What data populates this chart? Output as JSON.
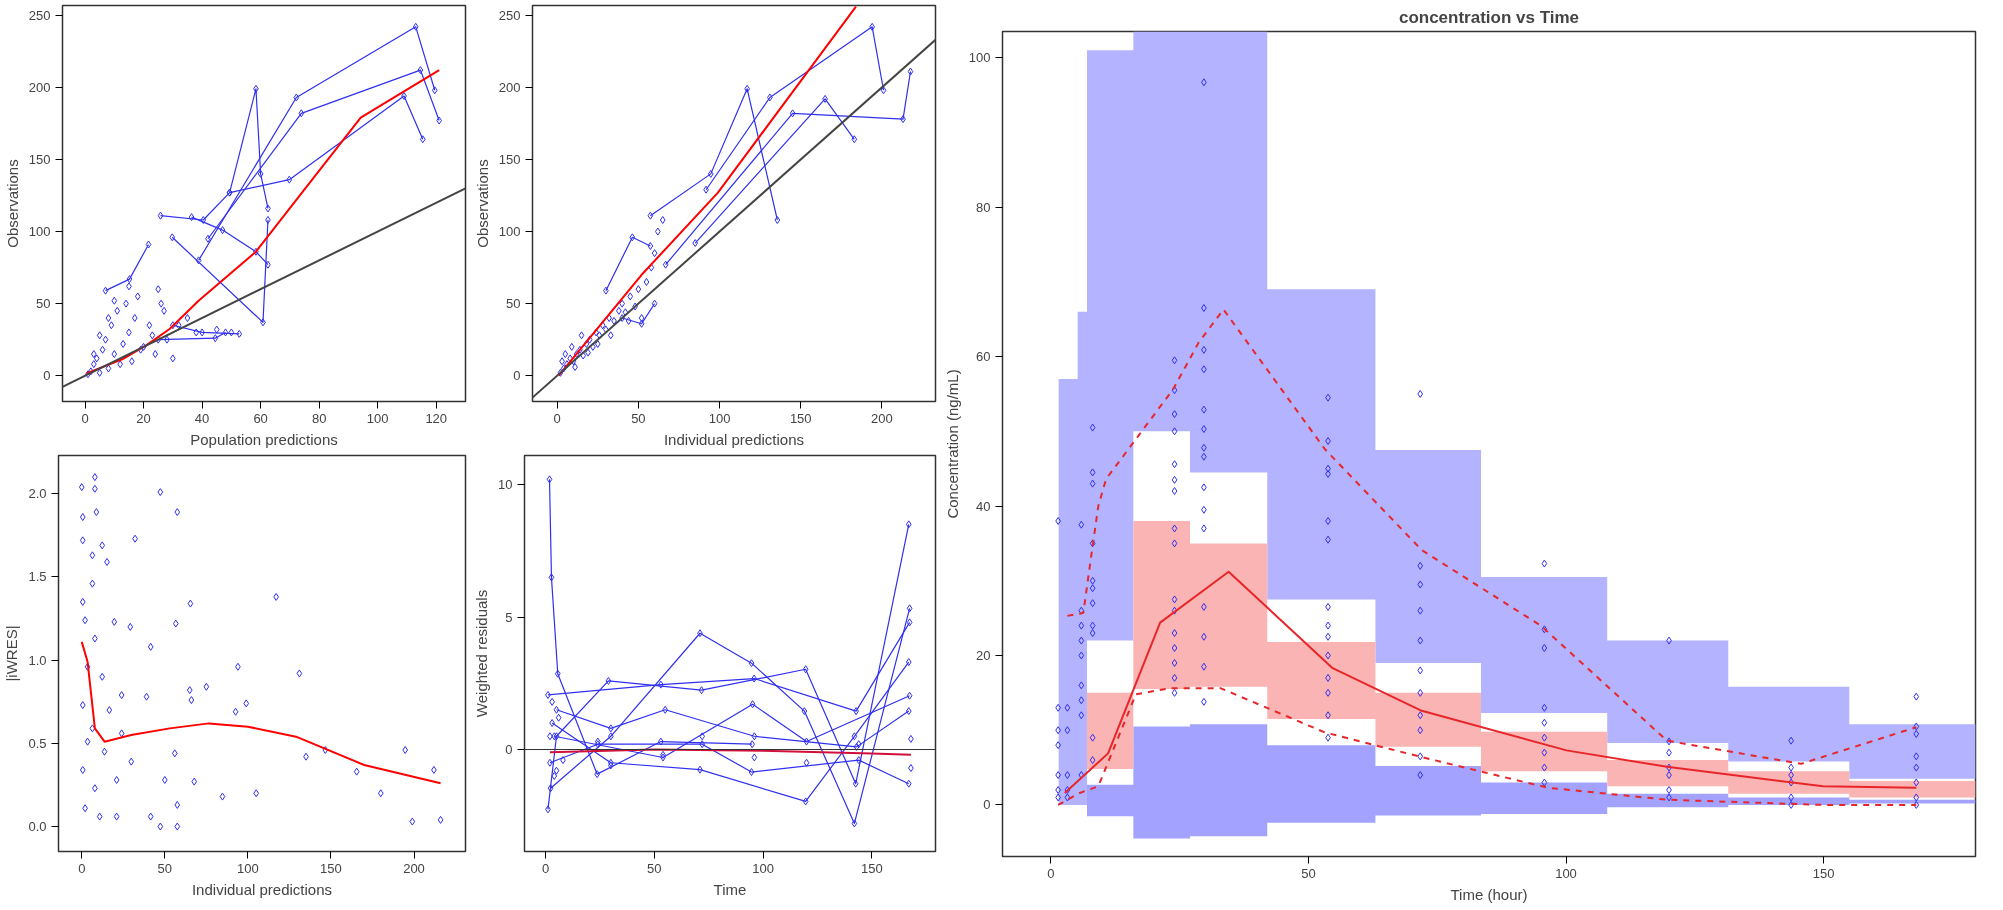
{
  "chart_data": [
    {
      "type": "line",
      "xlabel": "Population predictions",
      "ylabel": "Observations",
      "xlim": [
        -7.7,
        130
      ],
      "ylim": [
        -17.9,
        256.8
      ],
      "xticks": [
        0,
        20,
        40,
        60,
        80,
        100,
        120
      ],
      "yticks": [
        0,
        50,
        100,
        150,
        200,
        250
      ],
      "marker": "diamond",
      "series": [
        {
          "color": "#3030f0",
          "x": [
            25.8,
            40.4,
            49.4,
            58.4,
            60,
            62.5
          ],
          "values": [
            111,
            108,
            127,
            199,
            140,
            116
          ]
        },
        {
          "color": "#3030f0",
          "x": [
            36.4,
            47,
            58.4,
            62.5
          ],
          "values": [
            110,
            101,
            86,
            77
          ]
        },
        {
          "color": "#3030f0",
          "x": [
            38.8,
            72.2,
            113,
            119.5
          ],
          "values": [
            80,
            193,
            242,
            198
          ]
        },
        {
          "color": "#3030f0",
          "x": [
            42,
            73.9,
            114.6,
            121
          ],
          "values": [
            95,
            182,
            212,
            177
          ]
        },
        {
          "color": "#3030f0",
          "x": [
            49.4,
            69.8,
            109,
            115.4
          ],
          "values": [
            127,
            136,
            194,
            164
          ]
        },
        {
          "color": "#3030f0",
          "x": [
            29.8,
            60.8,
            62.5
          ],
          "values": [
            96,
            37,
            108
          ]
        },
        {
          "color": "#3030f0",
          "x": [
            7,
            15.2,
            21.7
          ],
          "values": [
            59,
            67,
            91
          ]
        },
        {
          "color": "#3030f0",
          "x": [
            30,
            40,
            52.7
          ],
          "values": [
            35,
            30,
            29
          ]
        },
        {
          "color": "#3030f0",
          "x": [
            25,
            44.5,
            48
          ],
          "values": [
            25,
            26,
            30
          ]
        },
        {
          "type": "scatter",
          "color": "#3030f0",
          "x": [
            2,
            3,
            4,
            5,
            6,
            7,
            8,
            9,
            10,
            11,
            12,
            13,
            14,
            15,
            16,
            17,
            18,
            20,
            22,
            24,
            25,
            27,
            28,
            30,
            32,
            35,
            38,
            45,
            50,
            1,
            3,
            5,
            8,
            10,
            15,
            19,
            23,
            26
          ],
          "values": [
            3,
            8,
            12,
            2,
            18,
            25,
            5,
            35,
            15,
            45,
            8,
            22,
            50,
            30,
            10,
            40,
            55,
            20,
            35,
            15,
            60,
            45,
            25,
            12,
            35,
            40,
            30,
            32,
            30,
            1,
            15,
            28,
            40,
            52,
            62,
            18,
            28,
            50
          ]
        },
        {
          "color": "#ff0000",
          "marker": "none",
          "x": [
            0.5,
            12.7,
            20.9,
            29,
            38.8,
            58.4,
            78,
            94.2,
            121
          ],
          "values": [
            1.6,
            11.4,
            21,
            32.6,
            52,
            86,
            137,
            179,
            212
          ]
        },
        {
          "color": "#444444",
          "marker": "none",
          "x": [
            -7.7,
            130
          ],
          "values": [
            -7.7,
            130
          ]
        }
      ]
    },
    {
      "type": "line",
      "xlabel": "Individual predictions",
      "ylabel": "Observations",
      "xlim": [
        -15.2,
        233
      ],
      "ylim": [
        -17.9,
        256.8
      ],
      "xticks": [
        0,
        50,
        100,
        150,
        200
      ],
      "yticks": [
        0,
        50,
        100,
        150,
        200,
        250
      ],
      "marker": "diamond",
      "series": [
        {
          "color": "#3030f0",
          "x": [
            57.4,
            94.6,
            117,
            135.6
          ],
          "values": [
            111,
            140,
            199,
            108
          ]
        },
        {
          "color": "#3030f0",
          "x": [
            91.7,
            131,
            194,
            201
          ],
          "values": [
            129,
            193,
            242,
            198
          ]
        },
        {
          "color": "#3030f0",
          "x": [
            66.8,
            145,
            213,
            217.6
          ],
          "values": [
            77,
            182,
            178,
            211
          ]
        },
        {
          "color": "#3030f0",
          "x": [
            85,
            165,
            183
          ],
          "values": [
            92,
            192,
            164
          ]
        },
        {
          "color": "#3030f0",
          "x": [
            30,
            46.3,
            57.4
          ],
          "values": [
            59,
            96,
            90
          ]
        },
        {
          "color": "#3030f0",
          "x": [
            40,
            52,
            60
          ],
          "values": [
            40,
            36,
            50
          ]
        },
        {
          "type": "scatter",
          "color": "#3030f0",
          "x": [
            2,
            4,
            6,
            8,
            10,
            12,
            14,
            16,
            18,
            20,
            22,
            24,
            26,
            28,
            30,
            32,
            35,
            38,
            40,
            42,
            45,
            48,
            50,
            55,
            58,
            60,
            62,
            65,
            3,
            5,
            9,
            11,
            15,
            19,
            25,
            33,
            44,
            52
          ],
          "values": [
            2,
            5,
            8,
            12,
            10,
            15,
            18,
            14,
            22,
            25,
            20,
            30,
            28,
            35,
            32,
            40,
            38,
            45,
            50,
            44,
            55,
            48,
            60,
            65,
            75,
            85,
            100,
            108,
            10,
            15,
            20,
            6,
            28,
            16,
            22,
            28,
            38,
            40
          ]
        },
        {
          "color": "#ff0000",
          "marker": "none",
          "x": [
            0.9,
            52,
            99,
            184
          ],
          "values": [
            0,
            70,
            127,
            256
          ]
        },
        {
          "color": "#444444",
          "marker": "none",
          "x": [
            -15.2,
            233
          ],
          "values": [
            -15.2,
            233
          ]
        }
      ]
    },
    {
      "type": "scatter",
      "xlabel": "Individual predictions",
      "ylabel": "|iWRES|",
      "xlim": [
        -14,
        231
      ],
      "ylim": [
        -0.15,
        2.23
      ],
      "xticks": [
        0,
        50,
        100,
        150,
        200
      ],
      "yticks": [
        {
          "value": 0,
          "label": "0.0"
        },
        0.5,
        {
          "value": 1,
          "label": "1.0"
        },
        1.5,
        {
          "value": 2,
          "label": "2.0"
        }
      ],
      "marker": "diamond",
      "series": [
        {
          "color": "#3030f0",
          "x": [
            47.3,
            57.5,
            32.1,
            117,
            65.4,
            56.6,
            29.2,
            41.5,
            94,
            131,
            75,
            65,
            39,
            66,
            99,
            92.6,
            135,
            146.6,
            194.7,
            212,
            165.5,
            180,
            105,
            84.7,
            67.7,
            56,
            57.5,
            57.5,
            47.3,
            199,
            216,
            50,
            41.5,
            0,
            7.9,
            7.9,
            0.6,
            8.8,
            0.6,
            12.3,
            6.4,
            15.2,
            6.4,
            0.6,
            2,
            7.9,
            19.6,
            3.5,
            12.3,
            0.6,
            6.4,
            3.5,
            13.7,
            0.6,
            7.9,
            2,
            10.8,
            21,
            24,
            24,
            29.8,
            16.6,
            21
          ],
          "values": [
            2.01,
            1.89,
            1.73,
            1.38,
            1.34,
            1.22,
            1.2,
            1.08,
            0.96,
            0.92,
            0.84,
            0.82,
            0.78,
            0.76,
            0.74,
            0.69,
            0.42,
            0.46,
            0.46,
            0.34,
            0.33,
            0.2,
            0.2,
            0.18,
            0.27,
            0.44,
            0.13,
            0,
            0,
            0.03,
            0.04,
            0.28,
            0.06,
            2.04,
            2.1,
            2.03,
            1.86,
            1.89,
            1.72,
            1.69,
            1.63,
            1.59,
            1.46,
            1.35,
            1.24,
            1.13,
            1.23,
            0.96,
            0.9,
            0.73,
            0.59,
            0.51,
            0.45,
            0.34,
            0.23,
            0.11,
            0.06,
            0.28,
            0.56,
            0.79,
            0.39,
            0.7,
            0.06
          ]
        },
        {
          "type": "line",
          "color": "#ff0000",
          "marker": "none",
          "x": [
            0,
            3.5,
            7.9,
            13.7,
            29.8,
            53,
            76.5,
            100,
            129,
            170,
            216
          ],
          "values": [
            1.11,
            0.99,
            0.59,
            0.51,
            0.55,
            0.59,
            0.62,
            0.6,
            0.54,
            0.37,
            0.26
          ]
        }
      ]
    },
    {
      "type": "line",
      "xlabel": "Time",
      "ylabel": "Weighted residuals",
      "xlim": [
        -9.7,
        179.3
      ],
      "ylim": [
        -3.85,
        11.1
      ],
      "xticks": [
        0,
        50,
        100,
        150
      ],
      "yticks": [
        0,
        5,
        10
      ],
      "marker": "diamond",
      "ref_lines": [
        {
          "axis": "y",
          "value": 0,
          "color": "#333333"
        }
      ],
      "series": [
        {
          "color": "#3030f0",
          "x": [
            1.8,
            2.7,
            5.6,
            23.7,
            53,
            95
          ],
          "values": [
            10.2,
            6.5,
            2.86,
            -0.93,
            0.3,
            0.2
          ]
        },
        {
          "color": "#3030f0",
          "x": [
            1.1,
            5,
            28.9,
            71.7,
            119.6,
            142.6,
            167
          ],
          "values": [
            -2.26,
            0.5,
            2.59,
            2.24,
            3.03,
            -1.29,
            8.5
          ]
        },
        {
          "color": "#3030f0",
          "x": [
            2.3,
            30,
            71,
            94.7,
            119,
            142,
            167.4
          ],
          "values": [
            -1.46,
            0.5,
            4.39,
            3.26,
            1.45,
            -2.79,
            5.33
          ]
        },
        {
          "color": "#3030f0",
          "x": [
            1.1,
            53,
            95.9,
            142.8,
            167.4
          ],
          "values": [
            2.06,
            2.45,
            2.68,
            1.45,
            4.8
          ]
        },
        {
          "color": "#3030f0",
          "x": [
            3,
            30,
            71,
            119.6,
            142,
            167
          ],
          "values": [
            1,
            -0.5,
            -0.76,
            -1.96,
            0.5,
            3.3
          ]
        },
        {
          "color": "#3030f0",
          "x": [
            4,
            54,
            95.2,
            120,
            167.4
          ],
          "values": [
            0.5,
            -0.3,
            1.71,
            0.3,
            2.03
          ]
        },
        {
          "color": "#3030f0",
          "x": [
            2,
            24,
            72,
            94.7,
            144,
            167
          ],
          "values": [
            -0.5,
            0.2,
            0.2,
            -0.85,
            -0.4,
            -1.29
          ]
        },
        {
          "color": "#3030f0",
          "x": [
            5,
            30,
            55,
            96,
            143,
            167
          ],
          "values": [
            1.5,
            0.8,
            1.5,
            0.5,
            0.1,
            1.45
          ]
        },
        {
          "type": "scatter",
          "color": "#3030f0",
          "x": [
            2,
            4,
            6,
            8,
            24,
            30,
            54,
            72,
            96,
            120,
            144,
            168,
            168,
            3,
            5
          ],
          "values": [
            0.5,
            -1,
            1.2,
            -0.4,
            0.3,
            -0.6,
            -0.2,
            0.5,
            -0.3,
            -0.5,
            0.2,
            -0.7,
            0.4,
            1.8,
            -0.8
          ]
        },
        {
          "color": "#d0103a",
          "marker": "none",
          "x": [
            2,
            50,
            100,
            150,
            168
          ],
          "values": [
            -0.1,
            0,
            -0.05,
            -0.15,
            -0.2
          ]
        }
      ]
    },
    {
      "type": "line",
      "title": "concentration vs Time",
      "xlabel": "Time (hour)",
      "ylabel": "Concentration (ng/mL)",
      "xlim": [
        -9.4,
        179.5
      ],
      "ylim": [
        -6.9,
        103.5
      ],
      "xticks": [
        0,
        50,
        100,
        150
      ],
      "yticks": [
        0,
        20,
        40,
        60,
        80,
        100
      ],
      "marker": "none",
      "series": [
        {
          "color": "#b3b3ff",
          "x": [
            1.5,
            5.2,
            5.2,
            7,
            7,
            16,
            16,
            27,
            27,
            42,
            42,
            63,
            63,
            83.5,
            83.5,
            108,
            108,
            131.5,
            131.5,
            155,
            155,
            179.5
          ],
          "values": [
            null,
            null,
            null,
            null,
            null,
            null,
            null,
            null,
            null,
            null,
            null,
            null,
            null,
            null,
            null,
            null,
            null,
            null,
            null,
            null,
            null,
            null
          ],
          "lower": [
            0,
            0,
            0,
            0,
            22,
            22,
            50,
            50,
            44.5,
            44.5,
            27.5,
            27.5,
            19,
            19,
            12.3,
            12.3,
            8.3,
            8.3,
            5.8,
            5.8,
            3.5,
            3.5
          ],
          "upper": [
            57,
            57,
            66,
            66,
            101,
            101,
            103.5,
            103.5,
            103.5,
            103.5,
            69,
            69,
            47.5,
            47.5,
            30.5,
            30.5,
            22,
            22,
            15.8,
            15.8,
            10.8,
            10.8
          ]
        },
        {
          "color": "#a3a3ff",
          "x": [
            7,
            16,
            16,
            27,
            27,
            42,
            42,
            63,
            63,
            83.5,
            83.5,
            108,
            108,
            131.5,
            131.5,
            155,
            155,
            179.5
          ],
          "values": [
            null,
            null,
            null,
            null,
            null,
            null,
            null,
            null,
            null,
            null,
            null,
            null,
            null,
            null,
            null,
            null,
            null,
            null
          ],
          "lower": [
            -1.5,
            -1.5,
            -4.5,
            -4.5,
            -4.2,
            -4.2,
            -2.4,
            -2.4,
            -1.4,
            -1.4,
            -1.2,
            -1.2,
            -0.3,
            -0.3,
            0,
            0,
            0.2,
            0.2
          ],
          "upper": [
            2.7,
            2.7,
            10.5,
            10.5,
            10.8,
            10.8,
            8,
            8,
            5.2,
            5.2,
            3,
            3,
            1.5,
            1.5,
            1,
            1,
            0.7,
            0.7
          ]
        },
        {
          "color": "#fbb4b4",
          "x": [
            7,
            16,
            16,
            27,
            27,
            42,
            42,
            63,
            63,
            83.5,
            83.5,
            108,
            108,
            131.5,
            131.5,
            155,
            155,
            179.5
          ],
          "values": [
            null,
            null,
            null,
            null,
            null,
            null,
            null,
            null,
            null,
            null,
            null,
            null,
            null,
            null,
            null,
            null,
            null,
            null
          ],
          "lower": [
            4.8,
            4.8,
            15.5,
            15.5,
            15.8,
            15.8,
            11.5,
            11.5,
            7.8,
            7.8,
            4.5,
            4.5,
            2.5,
            2.5,
            1.5,
            1.5,
            1,
            1
          ],
          "upper": [
            15,
            15,
            38,
            38,
            35,
            35,
            21.8,
            21.8,
            15,
            15,
            9.8,
            9.8,
            6,
            6,
            4.5,
            4.5,
            3.2,
            3.2
          ]
        },
        {
          "type": "scatter",
          "marker": "diamond",
          "color": "#3030f0",
          "x": [
            1.4,
            1.4,
            1.4,
            1.4,
            1.4,
            1.4,
            1.4,
            3.2,
            3.2,
            3.2,
            3.2,
            3.2,
            5.9,
            5.9,
            5.9,
            5.9,
            5.9,
            5.9,
            5.9,
            5.9,
            5.9,
            8.1,
            8.1,
            8.1,
            8.1,
            8.1,
            8.1,
            8.1,
            8.1,
            8.1,
            8.1,
            8.1,
            24,
            24,
            24,
            24,
            24,
            24,
            24,
            24,
            24,
            24,
            24,
            24,
            24,
            24,
            24,
            24,
            29.7,
            29.7,
            29.7,
            29.7,
            29.7,
            29.7,
            29.7,
            29.7,
            29.7,
            29.7,
            29.7,
            29.7,
            29.7,
            29.7,
            29.7,
            53.8,
            53.8,
            53.8,
            53.8,
            53.8,
            53.8,
            53.8,
            53.8,
            53.8,
            53.8,
            53.8,
            53.8,
            53.8,
            53.8,
            71.7,
            71.7,
            71.7,
            71.7,
            71.7,
            71.7,
            71.7,
            71.7,
            71.7,
            71.7,
            71.7,
            95.8,
            95.8,
            95.8,
            95.8,
            95.8,
            95.8,
            95.8,
            95.8,
            95.8,
            120,
            120,
            120,
            120,
            120,
            120,
            120,
            143.7,
            143.7,
            143.7,
            143.7,
            143.7,
            143.7,
            168,
            168,
            168,
            168,
            168,
            168,
            168,
            168
          ],
          "values": [
            38,
            13,
            10,
            8,
            4,
            2,
            1,
            13,
            10,
            4,
            2,
            1,
            37.5,
            26,
            24,
            22,
            20,
            16,
            14,
            12,
            4,
            50.5,
            44.5,
            43,
            35,
            30,
            29,
            27,
            24,
            23,
            9,
            6,
            59.5,
            55.5,
            52.3,
            50,
            45.6,
            43.5,
            42,
            37,
            35,
            27.5,
            26,
            23,
            21,
            19,
            17,
            15,
            96.7,
            66.5,
            60.9,
            58.3,
            52.9,
            50.3,
            47.8,
            46.6,
            42.5,
            39.5,
            37,
            26.5,
            22.5,
            18.5,
            13.8,
            54.5,
            48.7,
            45,
            44.3,
            38,
            35.5,
            26.5,
            24,
            22.5,
            20,
            17,
            15,
            12,
            9,
            55,
            32,
            29.5,
            26,
            22,
            18,
            15,
            12,
            10,
            6.5,
            4,
            32.3,
            23.5,
            21,
            13,
            11,
            9,
            7,
            5,
            3,
            22,
            8.5,
            7,
            5,
            4,
            2,
            1,
            8.6,
            5,
            4,
            3,
            1,
            0,
            14.5,
            10.5,
            9.5,
            6.5,
            5,
            3,
            1,
            0
          ]
        },
        {
          "color": "#e8262a",
          "line_style": "solid",
          "x": [
            2.7,
            11.1,
            21.2,
            34.5,
            54.7,
            72,
            100.1,
            119.6,
            149.9,
            168
          ],
          "values": [
            1.6,
            6.9,
            24.4,
            31.2,
            18.3,
            12.6,
            7.3,
            5.1,
            2.5,
            2.3
          ]
        },
        {
          "color": "#e8262a",
          "line_style": "dashed",
          "x": [
            3.2,
            6.3,
            7.8,
            9.2,
            10.7,
            23.7,
            28.7,
            33.5,
            53.2,
            72,
            95.1,
            119.6,
            145.6,
            168
          ],
          "values": [
            25.3,
            25.7,
            33.2,
            40,
            43.6,
            55.6,
            61.9,
            66.3,
            47.6,
            34.1,
            24,
            8.6,
            5.5,
            10.4
          ]
        },
        {
          "color": "#e8262a",
          "line_style": "dashed",
          "x": [
            1.4,
            5.6,
            9.2,
            16.5,
            22.9,
            33,
            53.2,
            72,
            96.5,
            119.6,
            150,
            168
          ],
          "values": [
            0,
            1.6,
            2.5,
            14.8,
            15.6,
            15.6,
            9.7,
            6.4,
            2.3,
            0.7,
            0,
            0
          ]
        }
      ]
    }
  ]
}
